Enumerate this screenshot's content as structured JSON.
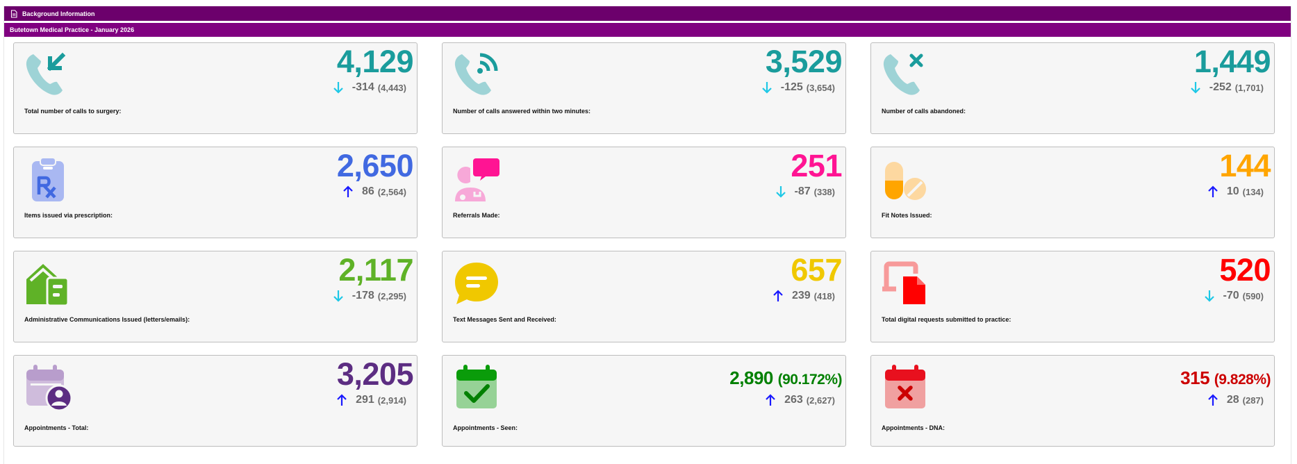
{
  "header": {
    "section_title": "Background Information",
    "practice_title": "Butetown Medical Practice - January 2026"
  },
  "colors": {
    "bar_dark": "#6c006c",
    "bar": "#800080",
    "teal": "#1a9c9c",
    "blue": "#4169e1",
    "pink": "#ff1493",
    "orange": "#ffa500",
    "green": "#5fb227",
    "yellow": "#f0c800",
    "red": "#ff0000",
    "purple": "#5c2d82",
    "dark_green": "#008000",
    "dark_red": "#cc0000",
    "arrow_down": "#1ec8e6",
    "arrow_up": "#1a1aff"
  },
  "cards": [
    {
      "id": "calls-total",
      "label": "Total number of calls to surgery:",
      "value": "4,129",
      "delta": "-314",
      "previous": "(4,443)",
      "trend": "down",
      "color": "#1a9c9c",
      "icon": "phone-incoming-icon"
    },
    {
      "id": "calls-answered",
      "label": "Number of calls answered within two minutes:",
      "value": "3,529",
      "delta": "-125",
      "previous": "(3,654)",
      "trend": "down",
      "color": "#1a9c9c",
      "icon": "phone-answered-icon"
    },
    {
      "id": "calls-abandoned",
      "label": "Number of calls abandoned:",
      "value": "1,449",
      "delta": "-252",
      "previous": "(1,701)",
      "trend": "down",
      "color": "#1a9c9c",
      "icon": "phone-abandoned-icon"
    },
    {
      "id": "prescriptions",
      "label": "Items issued via prescription:",
      "value": "2,650",
      "delta": "86",
      "previous": "(2,564)",
      "trend": "up",
      "color": "#4169e1",
      "icon": "prescription-icon"
    },
    {
      "id": "referrals",
      "label": "Referrals Made:",
      "value": "251",
      "delta": "-87",
      "previous": "(338)",
      "trend": "down",
      "color": "#ff1493",
      "icon": "doctor-chat-icon"
    },
    {
      "id": "fit-notes",
      "label": "Fit Notes Issued:",
      "value": "144",
      "delta": "10",
      "previous": "(134)",
      "trend": "up",
      "color": "#ffa500",
      "icon": "pills-icon"
    },
    {
      "id": "admin-comms",
      "label": "Administrative Communications Issued (letters/emails):",
      "value": "2,117",
      "delta": "-178",
      "previous": "(2,295)",
      "trend": "down",
      "color": "#5fb227",
      "icon": "mail-envelope-icon"
    },
    {
      "id": "text-messages",
      "label": "Text Messages Sent and Received:",
      "value": "657",
      "delta": "239",
      "previous": "(418)",
      "trend": "up",
      "color": "#f0c800",
      "icon": "speech-bubble-icon"
    },
    {
      "id": "digital-requests",
      "label": "Total digital requests submitted to practice:",
      "value": "520",
      "delta": "-70",
      "previous": "(590)",
      "trend": "down",
      "color": "#ff0000",
      "icon": "digital-request-icon"
    },
    {
      "id": "appt-total",
      "label": "Appointments - Total:",
      "value": "3,205",
      "delta": "291",
      "previous": "(2,914)",
      "trend": "up",
      "color": "#5c2d82",
      "icon": "calendar-user-icon"
    },
    {
      "id": "appt-seen",
      "label": "Appointments - Seen:",
      "value": "2,890",
      "value_pct": "(90.172%)",
      "delta": "263",
      "previous": "(2,627)",
      "trend": "up",
      "color": "#008000",
      "icon": "calendar-check-icon"
    },
    {
      "id": "appt-dna",
      "label": "Appointments - DNA:",
      "value": "315",
      "value_pct": "(9.828%)",
      "delta": "28",
      "previous": "(287)",
      "trend": "up",
      "color": "#cc0000",
      "icon": "calendar-cross-icon"
    }
  ]
}
